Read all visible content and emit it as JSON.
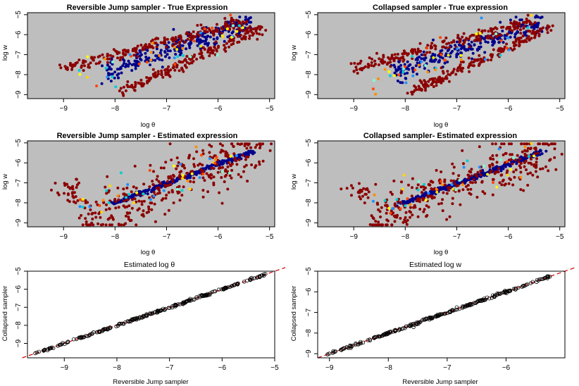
{
  "figure": {
    "panels": [
      {
        "id": "p1",
        "title": "Reversible Jump sampler - True Expression",
        "xlabel": "log θ",
        "ylabel": "log w"
      },
      {
        "id": "p2",
        "title": "Collapsed sampler - True expression",
        "xlabel": "log θ",
        "ylabel": "log w"
      },
      {
        "id": "p3",
        "title": "Reversible Jump sampler - Estimated expression",
        "xlabel": "log θ",
        "ylabel": "log w"
      },
      {
        "id": "p4",
        "title": "Collapsed sampler- Estimated expression",
        "xlabel": "log θ",
        "ylabel": "log w"
      },
      {
        "id": "p5",
        "title": "Estimated log θ",
        "xlabel": "Reversible Jump sampler",
        "ylabel": "Collapsed sampler"
      },
      {
        "id": "p6",
        "title": "Estimated log w",
        "xlabel": "Reversible Jump sampler",
        "ylabel": "Collapsed sampler"
      }
    ],
    "colors": {
      "panel_background": "#bebebe",
      "blue_band": "#00008b",
      "red_band": "#8b0000",
      "reference_line": "#cc0000",
      "open_point": "#000000"
    }
  },
  "chart_data": [
    {
      "type": "scatter",
      "title": "Reversible Jump sampler - True Expression",
      "xlabel": "log θ",
      "ylabel": "log w",
      "xlim": [
        -9.7,
        -4.9
      ],
      "ylim": [
        -9.2,
        -4.9
      ],
      "xticks": [
        -9,
        -8,
        -7,
        -6,
        -5
      ],
      "yticks": [
        -9,
        -8,
        -7,
        -6,
        -5
      ],
      "background": "gray",
      "structure": "central blue band from (-8.2,-7.8) to (-5.4,-5.4); two dark-red bands offset above and below; intermediate colours (cyan/yellow/orange) near band edges",
      "series": [
        {
          "name": "",
          "color": "#00008b",
          "line": [
            [
              -8.2,
              -7.85
            ],
            [
              -5.35,
              -5.4
            ]
          ],
          "spread": 0.25,
          "n": 260
        },
        {
          "name": "",
          "color": "#8b0000",
          "line": [
            [
              -9.0,
              -7.7
            ],
            [
              -5.5,
              -5.35
            ]
          ],
          "spread": 0.15,
          "n": 220,
          "offset": 0.55
        },
        {
          "name": "",
          "color": "#8b0000",
          "line": [
            [
              -7.9,
              -8.9
            ],
            [
              -5.15,
              -5.6
            ]
          ],
          "spread": 0.15,
          "n": 200,
          "offset": -0.5
        }
      ]
    },
    {
      "type": "scatter",
      "title": "Collapsed sampler - True expression",
      "xlabel": "log θ",
      "ylabel": "log w",
      "xlim": [
        -9.7,
        -4.9
      ],
      "ylim": [
        -9.2,
        -4.9
      ],
      "xticks": [
        -9,
        -8,
        -7,
        -6,
        -5
      ],
      "yticks": [
        -9,
        -8,
        -7,
        -6,
        -5
      ],
      "background": "gray",
      "structure": "same pattern as Reversible Jump true expression",
      "series": [
        {
          "name": "",
          "color": "#00008b",
          "line": [
            [
              -8.2,
              -7.85
            ],
            [
              -5.35,
              -5.4
            ]
          ],
          "spread": 0.25,
          "n": 260
        },
        {
          "name": "",
          "color": "#8b0000",
          "line": [
            [
              -9.0,
              -7.7
            ],
            [
              -5.5,
              -5.35
            ]
          ],
          "spread": 0.15,
          "n": 220
        },
        {
          "name": "",
          "color": "#8b0000",
          "line": [
            [
              -7.9,
              -8.9
            ],
            [
              -5.15,
              -5.6
            ]
          ],
          "spread": 0.15,
          "n": 200
        }
      ]
    },
    {
      "type": "scatter",
      "title": "Reversible Jump sampler - Estimated expression",
      "xlabel": "log θ",
      "ylabel": "log w",
      "xlim": [
        -9.7,
        -4.9
      ],
      "ylim": [
        -9.2,
        -4.9
      ],
      "xticks": [
        -9,
        -8,
        -7,
        -6,
        -5
      ],
      "yticks": [
        -9,
        -8,
        -7,
        -6,
        -5
      ],
      "background": "gray",
      "structure": "tight blue diagonal line from (-8.0,-8.0) to (-5.3,-5.4); dark-red cloud spread widely around it",
      "series": [
        {
          "name": "",
          "color": "#00008b",
          "line": [
            [
              -8.05,
              -8.05
            ],
            [
              -5.3,
              -5.4
            ]
          ],
          "spread": 0.04,
          "n": 300
        },
        {
          "name": "",
          "color": "#8b0000",
          "cloud": [
            [
              -9.6,
              -9.1
            ],
            [
              -5.15,
              -5.7
            ]
          ],
          "n": 360
        }
      ]
    },
    {
      "type": "scatter",
      "title": "Collapsed sampler- Estimated expression",
      "xlabel": "log θ",
      "ylabel": "log w",
      "xlim": [
        -9.7,
        -4.9
      ],
      "ylim": [
        -9.2,
        -4.9
      ],
      "xticks": [
        -9,
        -8,
        -7,
        -6,
        -5
      ],
      "yticks": [
        -9,
        -8,
        -7,
        -6,
        -5
      ],
      "background": "gray",
      "structure": "same pattern as Reversible Jump estimated expression",
      "series": [
        {
          "name": "",
          "color": "#00008b",
          "line": [
            [
              -8.05,
              -8.05
            ],
            [
              -5.3,
              -5.4
            ]
          ],
          "spread": 0.04,
          "n": 300
        },
        {
          "name": "",
          "color": "#8b0000",
          "cloud": [
            [
              -9.6,
              -9.1
            ],
            [
              -5.15,
              -5.7
            ]
          ],
          "n": 360
        }
      ]
    },
    {
      "type": "scatter",
      "title": "Estimated log θ",
      "xlabel": "Reversible Jump sampler",
      "ylabel": "Collapsed sampler",
      "xlim": [
        -9.7,
        -5.0
      ],
      "ylim": [
        -9.8,
        -5.0
      ],
      "xticks": [
        -9,
        -8,
        -7,
        -6,
        -5
      ],
      "yticks": [
        -9,
        -8,
        -7,
        -6,
        -5
      ],
      "reference_line": "y = x (dashed red)",
      "points_range": [
        -9.6,
        -5.15
      ],
      "n": 220,
      "spread": 0.03
    },
    {
      "type": "scatter",
      "title": "Estimated log w",
      "xlabel": "Reversible Jump sampler",
      "ylabel": "Collapsed sampler",
      "xlim": [
        -9.2,
        -5.0
      ],
      "ylim": [
        -9.2,
        -5.0
      ],
      "xticks": [
        -9,
        -8,
        -7,
        -6
      ],
      "yticks": [
        -9,
        -8,
        -7,
        -6,
        -5
      ],
      "reference_line": "y = x (dashed red)",
      "points_range": [
        -9.1,
        -5.2
      ],
      "n": 220,
      "spread": 0.03
    }
  ]
}
